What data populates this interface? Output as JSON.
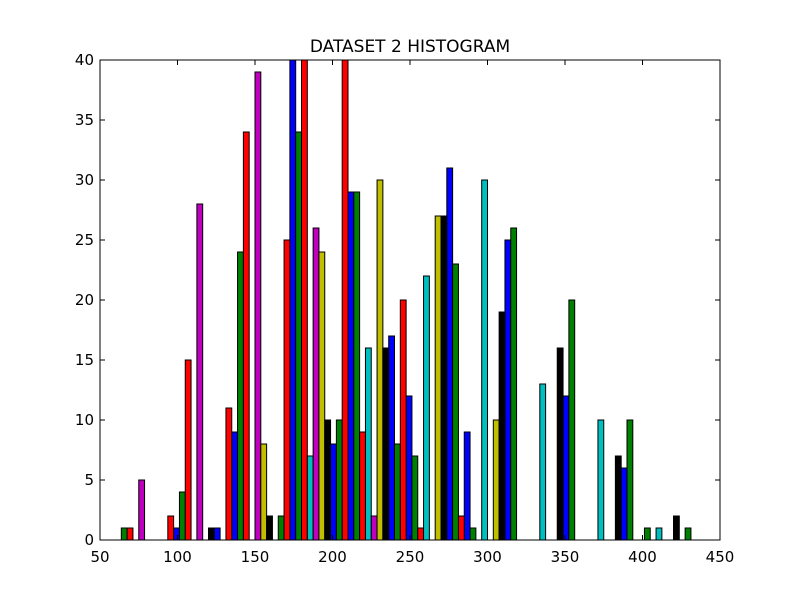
{
  "chart_data": {
    "type": "bar",
    "title": "DATASET 2 HISTOGRAM",
    "xlabel": "",
    "ylabel": "",
    "xlim": [
      50,
      450
    ],
    "ylim": [
      0,
      40
    ],
    "grid": false,
    "bin_start": 60,
    "bin_width": 37.5,
    "x_ticks": [
      "50",
      "100",
      "150",
      "200",
      "250",
      "300",
      "350",
      "400",
      "450"
    ],
    "y_ticks": [
      "0",
      "5",
      "10",
      "15",
      "20",
      "25",
      "30",
      "35",
      "40"
    ],
    "series": [
      {
        "color": "#0000ff",
        "values": [
          0,
          1,
          9,
          40,
          29,
          12,
          9,
          0,
          0,
          0
        ]
      },
      {
        "color": "#008000",
        "values": [
          1,
          4,
          24,
          34,
          29,
          7,
          1,
          0,
          0,
          1
        ]
      },
      {
        "color": "#ff0000",
        "values": [
          1,
          15,
          34,
          40,
          9,
          1,
          0,
          0,
          0,
          0
        ]
      },
      {
        "color": "#00bfbf",
        "values": [
          0,
          0,
          0,
          7,
          16,
          22,
          30,
          13,
          10,
          1
        ]
      },
      {
        "color": "#bf00bf",
        "values": [
          5,
          28,
          39,
          26,
          2,
          0,
          0,
          0,
          0,
          0
        ]
      },
      {
        "color": "#bfbf00",
        "values": [
          0,
          0,
          8,
          24,
          30,
          27,
          10,
          0,
          0,
          0
        ]
      },
      {
        "color": "#000000",
        "values": [
          0,
          1,
          2,
          10,
          16,
          27,
          19,
          16,
          7,
          2
        ]
      },
      {
        "color": "#0000ff",
        "values": [
          0,
          1,
          0,
          8,
          17,
          31,
          25,
          12,
          6,
          0
        ]
      },
      {
        "color": "#008000",
        "values": [
          0,
          0,
          2,
          10,
          8,
          23,
          26,
          20,
          10,
          1
        ]
      },
      {
        "color": "#ff0000",
        "values": [
          2,
          11,
          25,
          40,
          20,
          2,
          0,
          0,
          0,
          0
        ]
      }
    ]
  }
}
